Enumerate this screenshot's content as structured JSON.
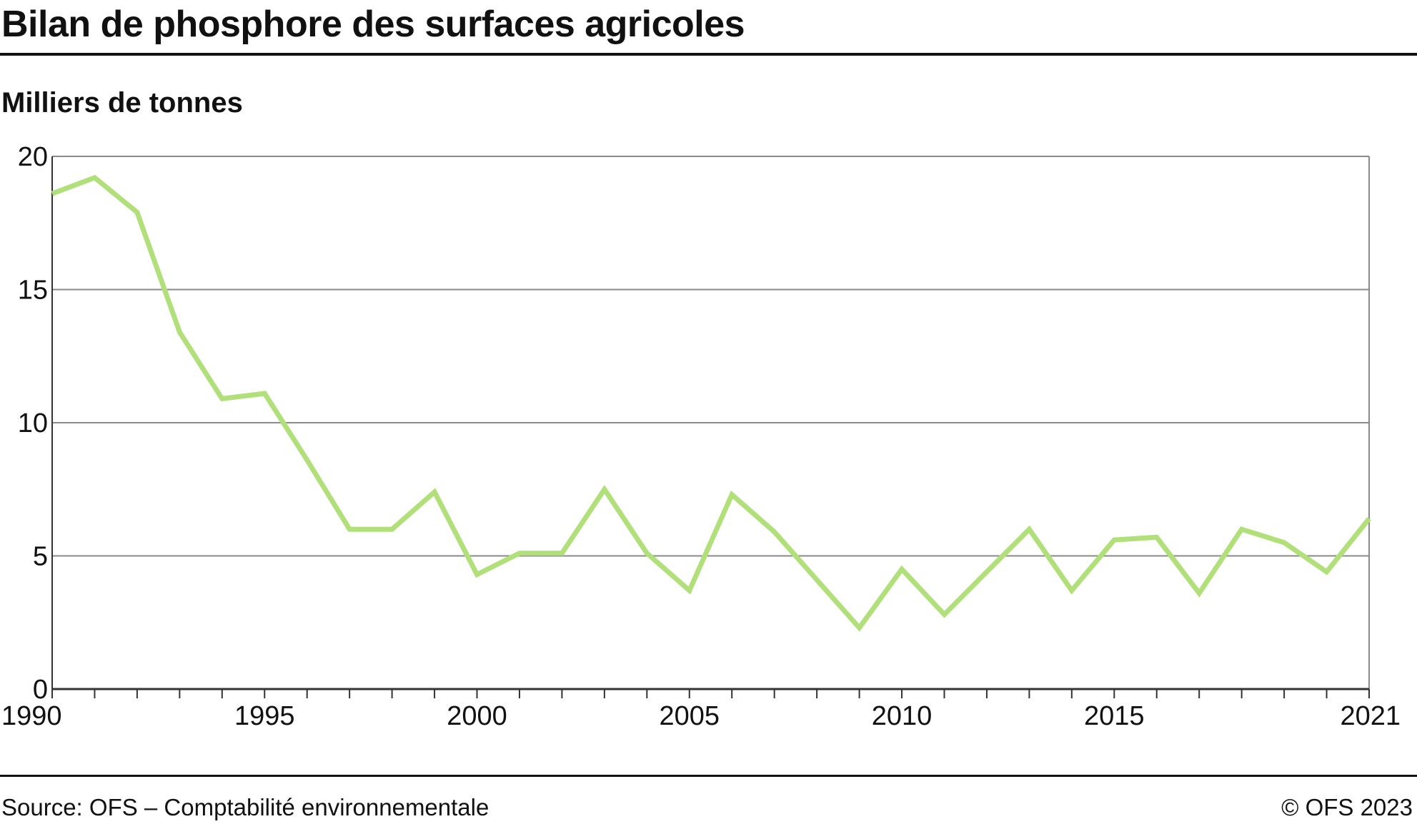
{
  "header": {
    "title": "Bilan de phosphore des surfaces agricoles",
    "unit_label": "Milliers de tonnes"
  },
  "footer": {
    "source": "Source: OFS – Comptabilité environnementale",
    "copyright": "© OFS 2023"
  },
  "colors": {
    "series_line": "#b1e07a",
    "gridline": "#8a8a8a",
    "axis": "#333333",
    "text": "#111111"
  },
  "chart_data": {
    "type": "line",
    "title": "Bilan de phosphore des surfaces agricoles",
    "ylabel": "Milliers de tonnes",
    "xlabel": "",
    "ylim": [
      0,
      20
    ],
    "xlim": [
      1990,
      2021
    ],
    "y_ticks": [
      0,
      5,
      10,
      15,
      20
    ],
    "x_tick_labels": [
      1990,
      1995,
      2000,
      2005,
      2010,
      2015,
      2021
    ],
    "grid": "horizontal",
    "legend": "none",
    "series": [
      {
        "x": [
          1990,
          1991,
          1992,
          1993,
          1994,
          1995,
          1996,
          1997,
          1998,
          1999,
          2000,
          2001,
          2002,
          2003,
          2004,
          2005,
          2006,
          2007,
          2008,
          2009,
          2010,
          2011,
          2012,
          2013,
          2014,
          2015,
          2016,
          2017,
          2018,
          2019,
          2020,
          2021
        ],
        "values": [
          18.6,
          19.2,
          17.9,
          13.4,
          10.9,
          11.1,
          8.6,
          6.0,
          6.0,
          7.4,
          4.3,
          5.1,
          5.1,
          7.5,
          5.1,
          3.7,
          7.3,
          5.9,
          4.1,
          2.3,
          4.5,
          2.8,
          4.4,
          6.0,
          3.7,
          5.6,
          5.7,
          3.6,
          6.0,
          5.5,
          4.4,
          6.4
        ]
      }
    ]
  }
}
